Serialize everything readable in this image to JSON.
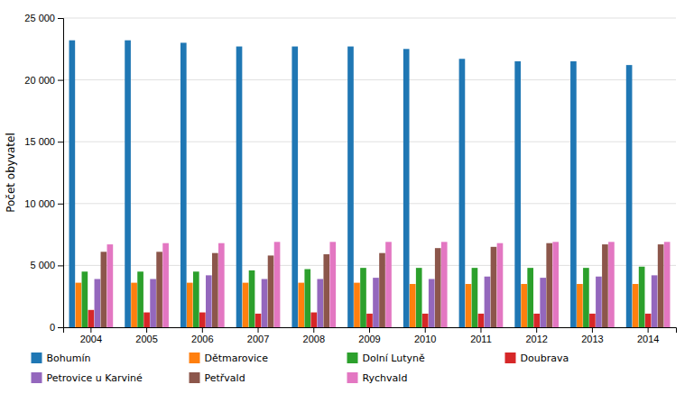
{
  "chart_data": {
    "type": "bar",
    "categories": [
      "2004",
      "2005",
      "2006",
      "2007",
      "2008",
      "2009",
      "2010",
      "2011",
      "2012",
      "2013",
      "2014"
    ],
    "series": [
      {
        "name": "Bohumín",
        "values": [
          23200,
          23200,
          23000,
          22700,
          22700,
          22700,
          22500,
          21700,
          21500,
          21500,
          21200
        ]
      },
      {
        "name": "Dětmarovice",
        "values": [
          3600,
          3600,
          3600,
          3600,
          3600,
          3600,
          3500,
          3500,
          3500,
          3500,
          3500
        ]
      },
      {
        "name": "Dolní Lutyně",
        "values": [
          4500,
          4500,
          4500,
          4600,
          4700,
          4800,
          4800,
          4800,
          4800,
          4800,
          4900
        ]
      },
      {
        "name": "Doubrava",
        "values": [
          1400,
          1200,
          1200,
          1100,
          1200,
          1100,
          1100,
          1100,
          1100,
          1100,
          1100
        ]
      },
      {
        "name": "Petrovice u Karviné",
        "values": [
          3900,
          3900,
          4200,
          3900,
          3900,
          4000,
          3900,
          4100,
          4000,
          4100,
          4200
        ]
      },
      {
        "name": "Petřvald",
        "values": [
          6100,
          6100,
          6000,
          5800,
          5900,
          6000,
          6400,
          6500,
          6800,
          6700,
          6700
        ]
      },
      {
        "name": "Rychvald",
        "values": [
          6700,
          6800,
          6800,
          6900,
          6900,
          6900,
          6900,
          6800,
          6900,
          6900,
          6900
        ]
      }
    ],
    "ylabel": "Počet obyvatel",
    "ylim": [
      0,
      25000
    ],
    "yticks": [
      0,
      {
        "value": 5000,
        "label": "5 000"
      },
      {
        "value": 10000,
        "label": "10 000"
      },
      {
        "value": 15000,
        "label": "15 000"
      },
      {
        "value": 20000,
        "label": "20 000"
      },
      {
        "value": 25000,
        "label": "25 000"
      }
    ],
    "grid": true,
    "legend": "bottom"
  }
}
